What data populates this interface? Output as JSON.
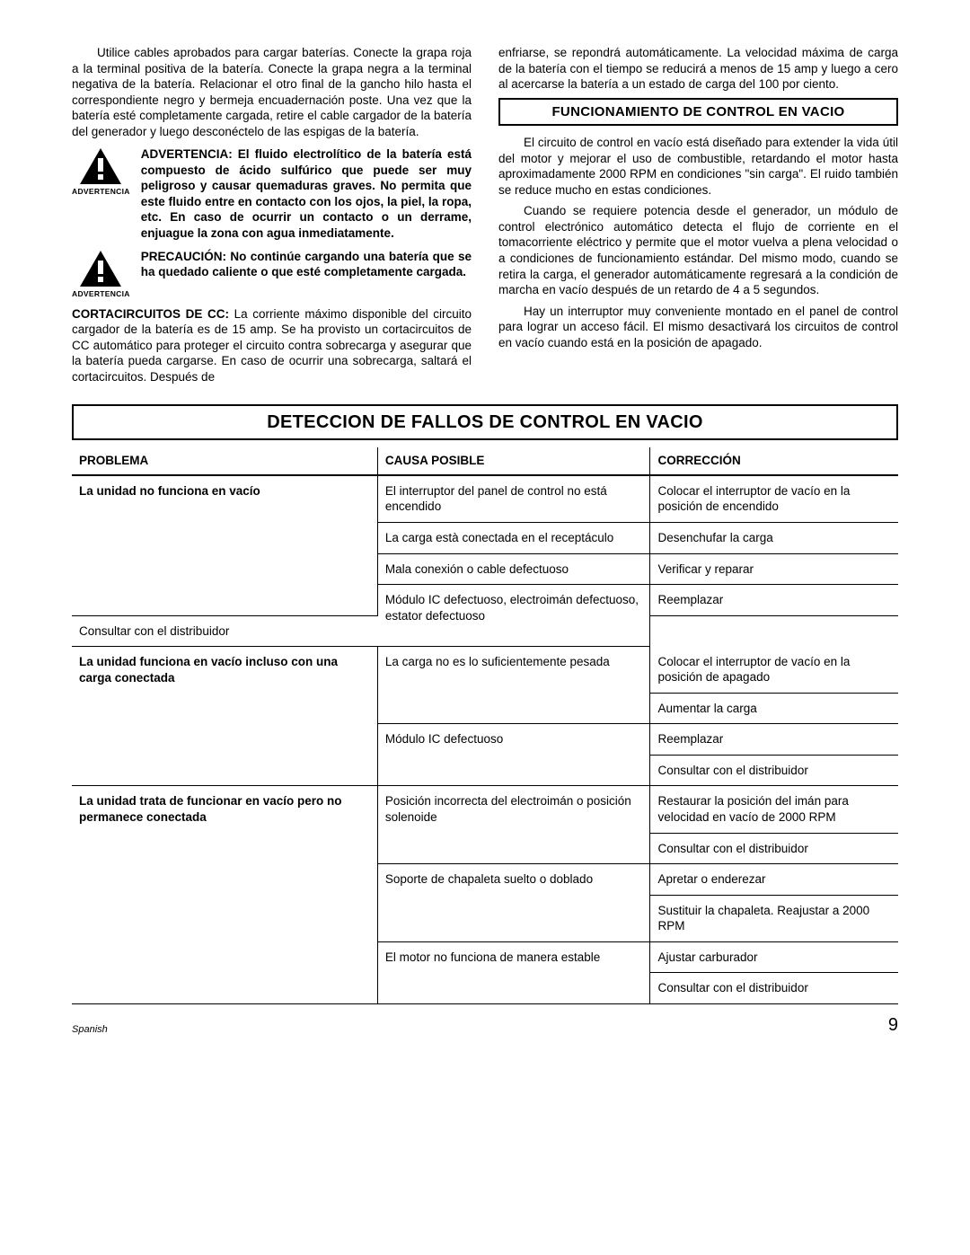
{
  "leftCol": {
    "p1": "Utilice cables aprobados para cargar baterías. Conecte la grapa roja a la terminal positiva de la batería. Conecte la grapa negra a la terminal negativa de la batería. Relacionar el otro final de la gancho hilo hasta el correspondiente negro y bermeja encuadernación poste. Una vez que la batería esté completamente cargada, retire el cable cargador de la batería del generador y luego desconéctelo de las espigas de la batería.",
    "warn1Label": "ADVERTENCIA",
    "warn1Text": "ADVERTENCIA:  El fluido electrolítico de la batería está compuesto de ácido sulfúrico que puede ser muy peligroso y causar quemaduras graves. No permita que este fluido entre en contacto con los ojos, la piel, la ropa, etc. En caso de ocurrir un contacto o un derrame, enjuague la zona con agua inmediatamente.",
    "warn2Label": "ADVERTENCIA",
    "warn2Text": "PRECAUCIÓN:  No continúe cargando una batería que se ha quedado caliente o que esté completamente cargada.",
    "p2Lead": "CORTACIRCUITOS DE CC:",
    "p2Body": "  La corriente máximo disponible del circuito cargador de la batería es de 15 amp. Se ha provisto un cortacircuitos de CC automático para proteger el circuito contra sobrecarga y asegurar que la batería pueda cargarse. En caso de ocurrir una sobrecarga, saltará el cortacircuitos. Después de"
  },
  "rightCol": {
    "pTop": "enfriarse, se repondrá automáticamente. La velocidad máxima de carga de la batería con el tiempo se reducirá a menos de 15 amp y luego a cero al acercarse la batería a un estado de carga del 100 por ciento.",
    "subhead": "FUNCIONAMIENTO DE CONTROL EN VACIO",
    "p1": "El circuito de control en vacío está diseñado para extender la vida útil del motor y mejorar el uso de combustible, retardando el motor hasta aproximadamente 2000 RPM en condiciones \"sin carga\". El ruido también se reduce mucho en estas condiciones.",
    "p2": "Cuando se requiere potencia desde el generador, un módulo de control electrónico automático detecta el flujo de corriente en el tomacorriente eléctrico y permite que el motor vuelva a plena velocidad o a condiciones de funcionamiento estándar. Del mismo modo, cuando se retira la carga, el generador automáticamente regresará a la condición de marcha en vacío después de un retardo de 4 a 5 segundos.",
    "p3": "Hay un interruptor muy conveniente montado en el panel de control para lograr un acceso fácil. El mismo desactivará los circuitos de control en vacío cuando está en la posición de apagado."
  },
  "mainHeading": "DETECCION DE FALLOS DE CONTROL EN VACIO",
  "tableHeaders": {
    "c1": "PROBLEMA",
    "c2": "CAUSA POSIBLE",
    "c3": "CORRECCIÓN"
  },
  "rows": [
    {
      "problem": "La unidad no funciona en vacío",
      "cause": "El interruptor del panel de control no está encendido",
      "fix": "Colocar el interruptor de vacío en la posición de encendido",
      "probSpan": 4,
      "causeSpan": 1
    },
    {
      "cause": "La carga està conectada en el receptáculo",
      "fix": "Desenchufar la carga",
      "causeSpan": 1
    },
    {
      "cause": "Mala conexión o cable defectuoso",
      "fix": "Verificar y reparar",
      "causeSpan": 1
    },
    {
      "cause": "Módulo IC defectuoso, electroimán defectuoso, estator defectuoso",
      "fix": "Reemplazar",
      "causeSpan": 2
    },
    {
      "fix": "Consultar con el distribuidor"
    },
    {
      "problem": "La unidad funciona en vacío incluso con una carga conectada",
      "cause": "La carga no es lo suficientemente pesada",
      "fix": "Colocar el interruptor de vacío en la posición de apagado",
      "probSpan": 4,
      "causeSpan": 2
    },
    {
      "fix": "Aumentar la carga"
    },
    {
      "cause": "Módulo IC defectuoso",
      "fix": "Reemplazar",
      "causeSpan": 2
    },
    {
      "fix": "Consultar con el distribuidor"
    },
    {
      "problem": "La unidad trata de funcionar en vacío pero no permanece conectada",
      "cause": "Posición incorrecta del electroimán o posición solenoide",
      "fix": "Restaurar la posición del imán para velocidad en vacío de 2000 RPM",
      "probSpan": 6,
      "causeSpan": 2
    },
    {
      "fix": "Consultar con el distribuidor"
    },
    {
      "cause": "Soporte de chapaleta suelto o doblado",
      "fix": "Apretar o enderezar",
      "causeSpan": 2
    },
    {
      "fix": "Sustituir la chapaleta.  Reajustar a 2000 RPM"
    },
    {
      "cause": "El motor no funciona de manera estable",
      "fix": "Ajustar carburador",
      "causeSpan": 2
    },
    {
      "fix": "Consultar con el distribuidor"
    }
  ],
  "footer": {
    "lang": "Spanish",
    "page": "9"
  },
  "style": {
    "iconFill": "#000000",
    "iconBangFill": "#ffffff",
    "borderColor": "#000000"
  }
}
